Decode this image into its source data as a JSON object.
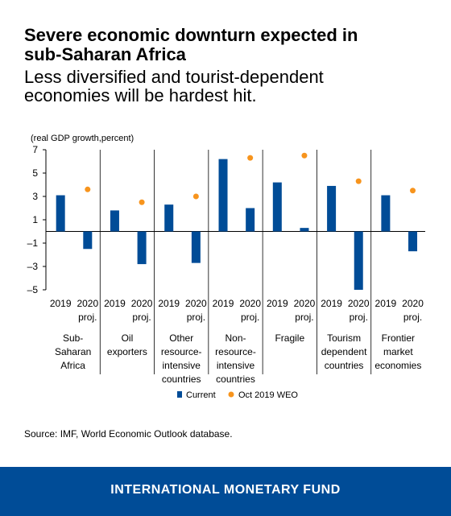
{
  "header": {
    "title_line1": "Severe economic downturn expected in",
    "title_line2": "sub-Saharan Africa",
    "subtitle_line1": "Less diversified and tourist-dependent",
    "subtitle_line2": "economies will be hardest hit."
  },
  "chart_data": {
    "type": "bar",
    "ylabel": "(real GDP growth,percent)",
    "ylim": [
      -5,
      7
    ],
    "yticks": [
      7,
      5,
      3,
      1,
      -1,
      -3,
      -5
    ],
    "ytick_labels": [
      "7",
      "5",
      "3",
      "1",
      "–1",
      "–3",
      "–5"
    ],
    "groups": [
      {
        "label": [
          "Sub-",
          "Saharan",
          "Africa"
        ],
        "current": [
          3.1,
          -1.5
        ],
        "weo2020": 3.6
      },
      {
        "label": [
          "Oil",
          "exporters"
        ],
        "current": [
          1.8,
          -2.8
        ],
        "weo2020": 2.5
      },
      {
        "label": [
          "Other",
          "resource-",
          "intensive",
          "countries"
        ],
        "current": [
          2.3,
          -2.7
        ],
        "weo2020": 3.0
      },
      {
        "label": [
          "Non-",
          "resource-",
          "intensive",
          "countries"
        ],
        "current": [
          6.2,
          2.0
        ],
        "weo2020": 6.3
      },
      {
        "label": [
          "Fragile"
        ],
        "current": [
          4.2,
          0.3
        ],
        "weo2020": 6.5
      },
      {
        "label": [
          "Tourism",
          "dependent",
          "countries"
        ],
        "current": [
          3.9,
          -5.0
        ],
        "weo2020": 4.3
      },
      {
        "label": [
          "Frontier",
          "market",
          "economies"
        ],
        "current": [
          3.1,
          -1.7
        ],
        "weo2020": 3.5
      }
    ],
    "period_labels": [
      "2019",
      "2020"
    ],
    "proj_label": "proj.",
    "legend": [
      "Current",
      "Oct 2019 WEO"
    ],
    "colors": {
      "current": "#004c97",
      "weo": "#f7941d"
    }
  },
  "source": "Source: IMF, World Economic Outlook database.",
  "footer": "INTERNATIONAL MONETARY FUND"
}
